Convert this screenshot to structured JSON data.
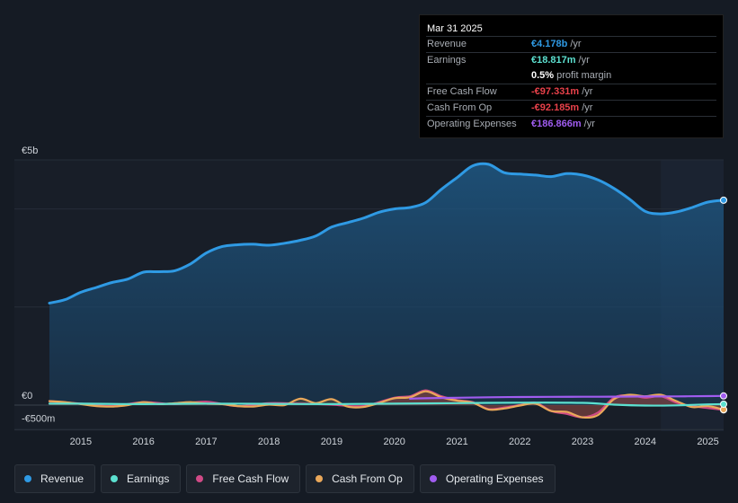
{
  "tooltip": {
    "date": "Mar 31 2025",
    "rows": [
      {
        "label": "Revenue",
        "value": "€4.178b",
        "unit": "/yr",
        "color": "#2f9ae4"
      },
      {
        "label": "Earnings",
        "value": "€18.817m",
        "unit": "/yr",
        "color": "#5ce0d0"
      },
      {
        "label": "",
        "value": "0.5%",
        "unit": "profit margin",
        "color": "#ffffff"
      },
      {
        "label": "Free Cash Flow",
        "value": "-€97.331m",
        "unit": "/yr",
        "color": "#e8414a"
      },
      {
        "label": "Cash From Op",
        "value": "-€92.185m",
        "unit": "/yr",
        "color": "#e8414a"
      },
      {
        "label": "Operating Expenses",
        "value": "€186.866m",
        "unit": "/yr",
        "color": "#a05cf0"
      }
    ]
  },
  "legend": [
    {
      "label": "Revenue",
      "color": "#2f9ae4"
    },
    {
      "label": "Earnings",
      "color": "#5ce0d0"
    },
    {
      "label": "Free Cash Flow",
      "color": "#d04a86"
    },
    {
      "label": "Cash From Op",
      "color": "#eaa85a"
    },
    {
      "label": "Operating Expenses",
      "color": "#a05cf0"
    }
  ],
  "chart_data": {
    "type": "line",
    "title": "",
    "y_tick_labels": [
      "€5b",
      "€0",
      "-€500m"
    ],
    "ylim": [
      -500,
      5000
    ],
    "xlim": [
      2014.4,
      2025.25
    ],
    "x_tick_labels": [
      "2015",
      "2016",
      "2017",
      "2018",
      "2019",
      "2020",
      "2021",
      "2022",
      "2023",
      "2024",
      "2025"
    ],
    "x_ticks": [
      2015,
      2016,
      2017,
      2018,
      2019,
      2020,
      2021,
      2022,
      2023,
      2024,
      2025
    ],
    "forecast_start": 2024.25,
    "series": [
      {
        "name": "Revenue",
        "color": "#2f9ae4",
        "x": [
          2014.5,
          2014.75,
          2015,
          2015.25,
          2015.5,
          2015.75,
          2016,
          2016.25,
          2016.5,
          2016.75,
          2017,
          2017.25,
          2017.5,
          2017.75,
          2018,
          2018.25,
          2018.5,
          2018.75,
          2019,
          2019.25,
          2019.5,
          2019.75,
          2020,
          2020.25,
          2020.5,
          2020.75,
          2021,
          2021.25,
          2021.5,
          2021.75,
          2022,
          2022.25,
          2022.5,
          2022.75,
          2023,
          2023.25,
          2023.5,
          2023.75,
          2024,
          2024.25,
          2024.5,
          2024.75,
          2025,
          2025.25
        ],
        "y": [
          2080,
          2150,
          2300,
          2400,
          2500,
          2570,
          2710,
          2720,
          2740,
          2880,
          3100,
          3230,
          3270,
          3280,
          3260,
          3300,
          3360,
          3450,
          3630,
          3720,
          3810,
          3930,
          4000,
          4030,
          4130,
          4400,
          4640,
          4880,
          4910,
          4740,
          4710,
          4690,
          4660,
          4720,
          4690,
          4590,
          4420,
          4200,
          3950,
          3900,
          3940,
          4030,
          4140,
          4178
        ]
      },
      {
        "name": "Earnings",
        "color": "#5ce0d0",
        "x": [
          2014.5,
          2015,
          2016,
          2017,
          2018,
          2019,
          2020,
          2021,
          2022,
          2023,
          2023.5,
          2024,
          2024.5,
          2025,
          2025.25
        ],
        "y": [
          30,
          30,
          20,
          30,
          25,
          20,
          30,
          40,
          50,
          45,
          10,
          -10,
          -5,
          15,
          18.8
        ]
      },
      {
        "name": "Free Cash Flow",
        "color": "#d04a86",
        "x": [
          2014.5,
          2015,
          2015.5,
          2016,
          2016.5,
          2017,
          2017.5,
          2018,
          2018.5,
          2019,
          2019.5,
          2020,
          2020.25,
          2020.5,
          2020.75,
          2021,
          2021.25,
          2021.5,
          2021.75,
          2022,
          2022.25,
          2022.5,
          2022.75,
          2023,
          2023.25,
          2023.5,
          2023.75,
          2024,
          2024.25,
          2024.5,
          2024.75,
          2025,
          2025.25
        ],
        "y": [
          80,
          30,
          -20,
          60,
          20,
          70,
          -20,
          40,
          30,
          10,
          -20,
          150,
          180,
          300,
          180,
          100,
          60,
          -80,
          -50,
          0,
          50,
          -120,
          -180,
          -250,
          -150,
          150,
          200,
          150,
          180,
          50,
          -20,
          -60,
          -97.3
        ]
      },
      {
        "name": "Cash From Op",
        "color": "#eaa85a",
        "x": [
          2014.5,
          2014.75,
          2015,
          2015.25,
          2015.5,
          2015.75,
          2016,
          2016.25,
          2016.5,
          2016.75,
          2017,
          2017.25,
          2017.5,
          2017.75,
          2018,
          2018.25,
          2018.5,
          2018.75,
          2019,
          2019.25,
          2019.5,
          2019.75,
          2020,
          2020.25,
          2020.5,
          2020.75,
          2021,
          2021.25,
          2021.5,
          2021.75,
          2022,
          2022.25,
          2022.5,
          2022.75,
          2023,
          2023.25,
          2023.5,
          2023.75,
          2024,
          2024.25,
          2024.5,
          2024.75,
          2025,
          2025.25
        ],
        "y": [
          80,
          60,
          20,
          -20,
          -30,
          0,
          60,
          20,
          40,
          60,
          30,
          20,
          -20,
          -30,
          10,
          0,
          130,
          40,
          120,
          -30,
          -40,
          40,
          140,
          160,
          280,
          160,
          90,
          50,
          -90,
          -70,
          -10,
          30,
          -120,
          -140,
          -250,
          -200,
          120,
          210,
          180,
          210,
          80,
          -40,
          -20,
          -92.2
        ]
      },
      {
        "name": "Operating Expenses",
        "color": "#a05cf0",
        "x": [
          2020.25,
          2020.5,
          2021,
          2021.5,
          2022,
          2022.5,
          2023,
          2023.5,
          2024,
          2024.5,
          2025,
          2025.25
        ],
        "y": [
          130,
          140,
          150,
          160,
          165,
          168,
          170,
          172,
          175,
          178,
          183,
          186.9
        ]
      }
    ]
  }
}
